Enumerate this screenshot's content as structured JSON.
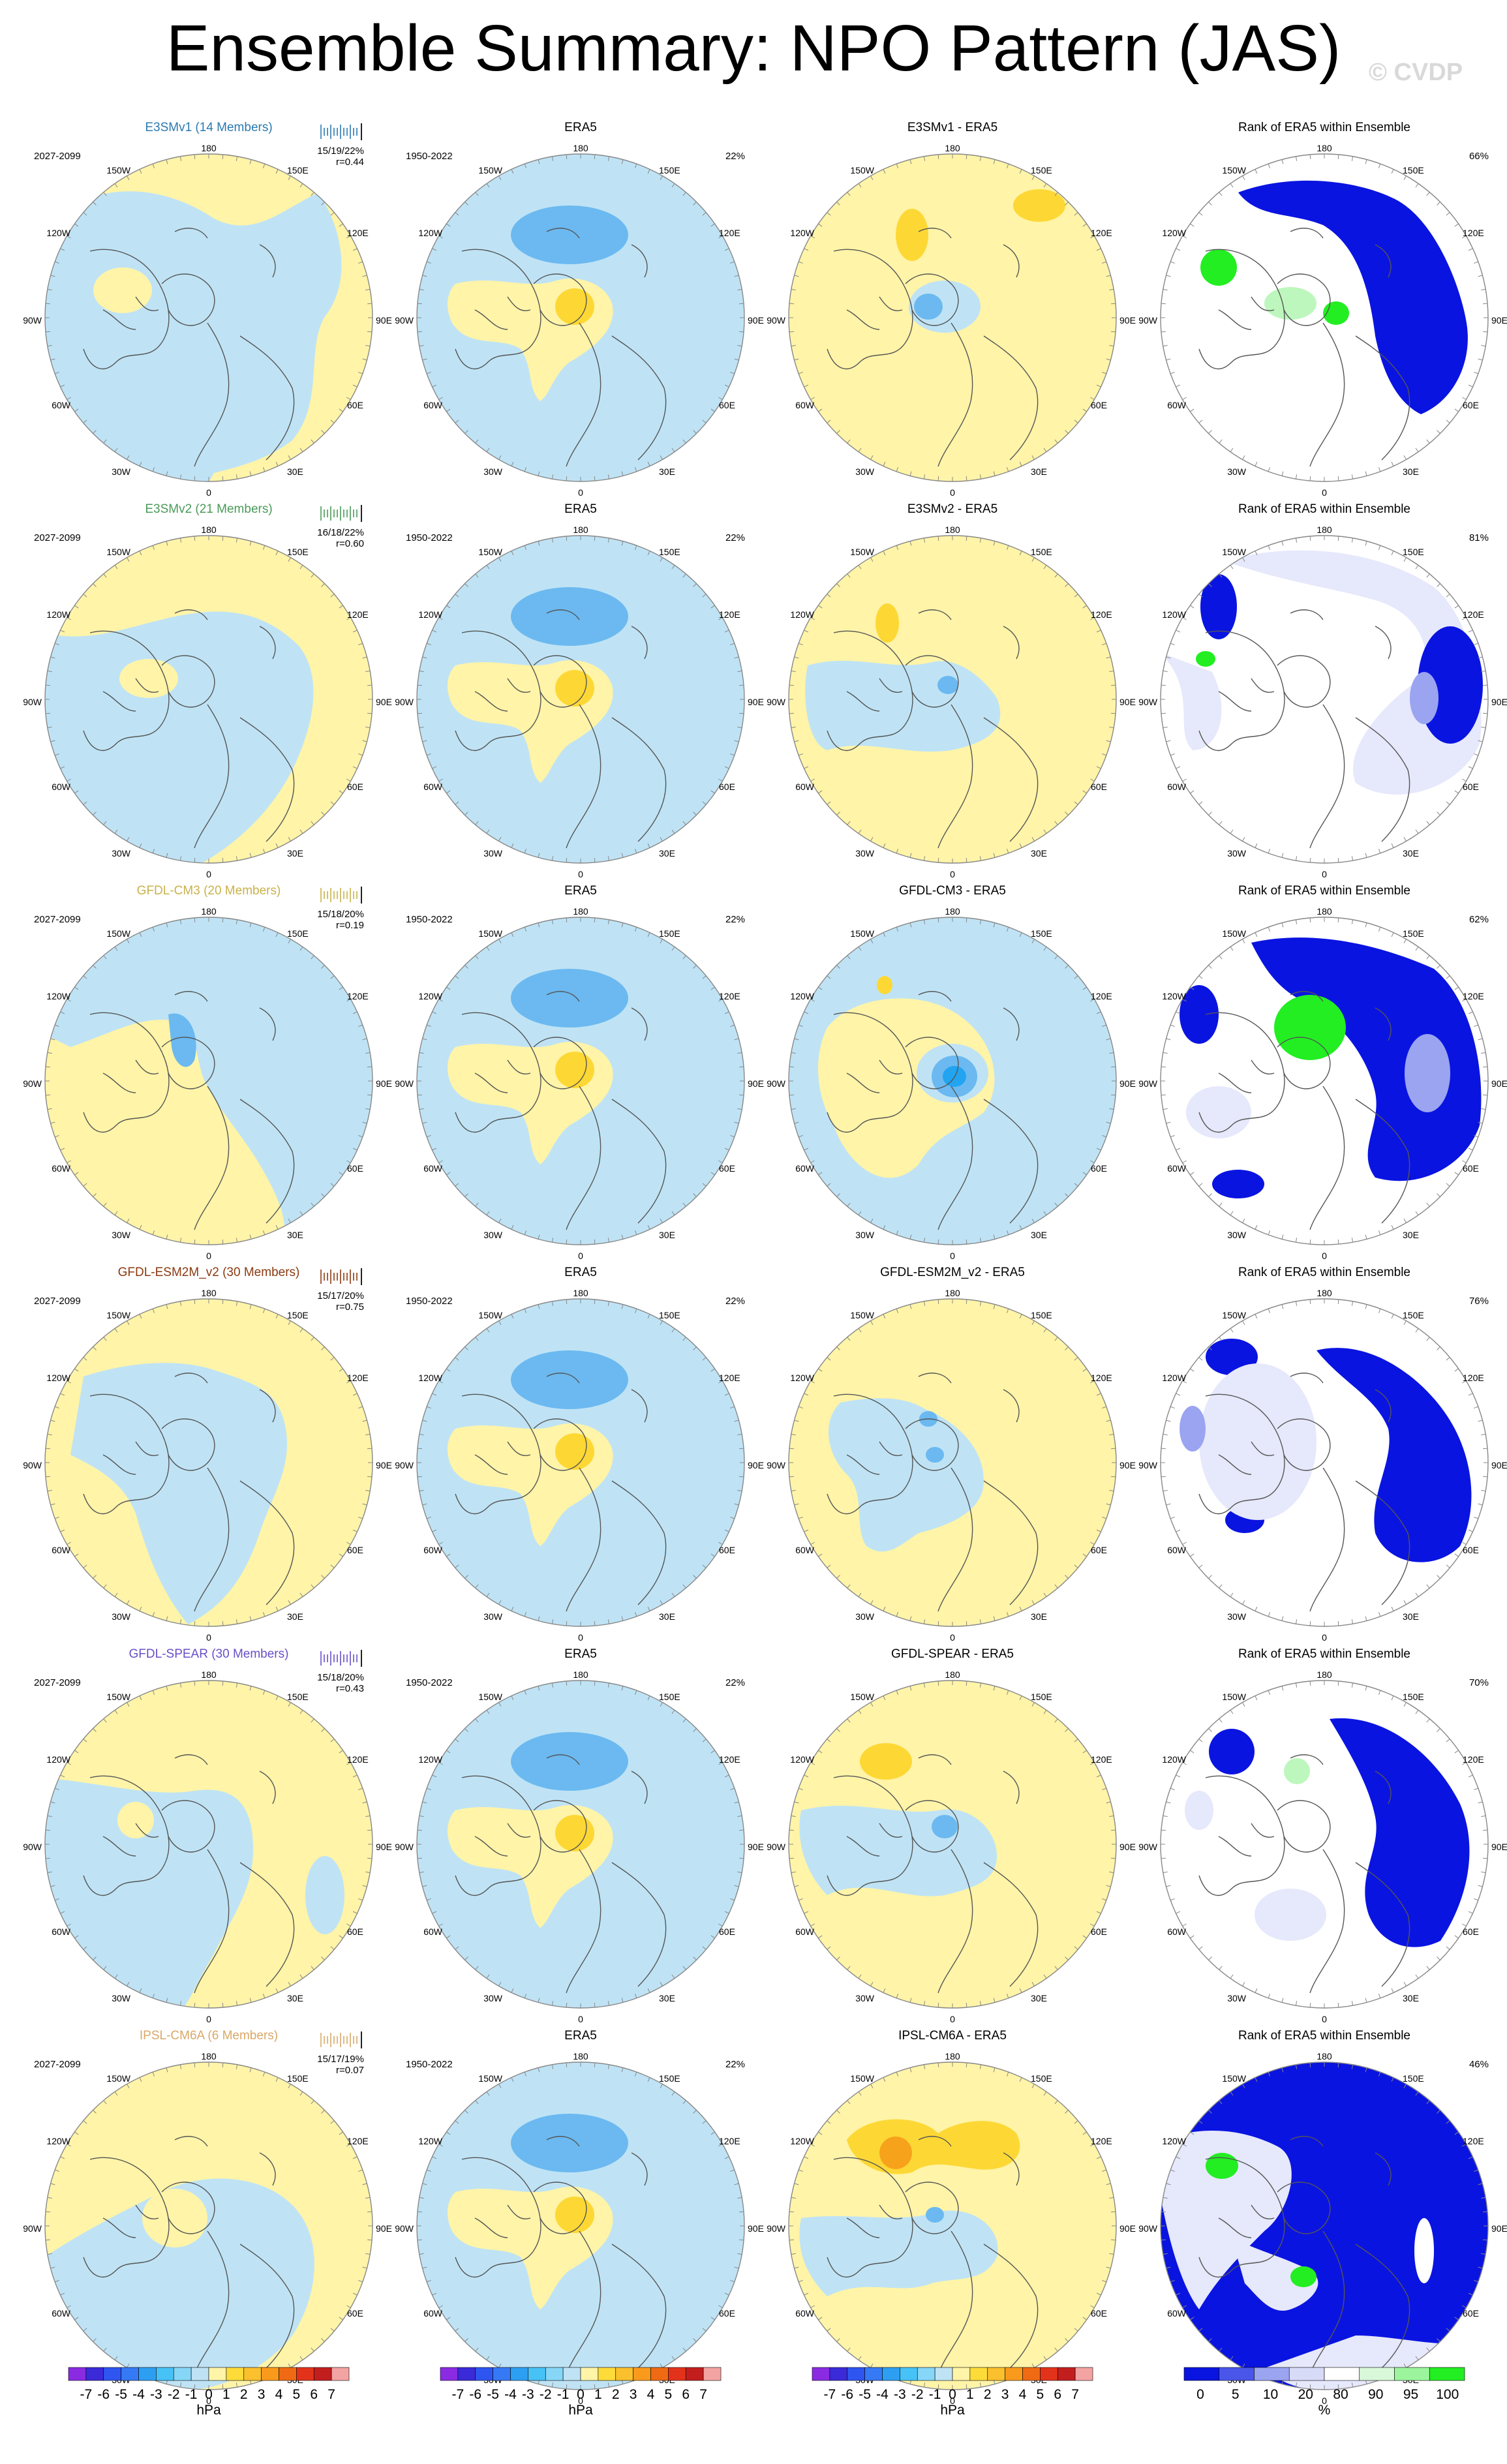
{
  "title": "Ensemble Summary: NPO Pattern (JAS)",
  "watermark": "© CVDP",
  "colors": {
    "positive": "#fff4a8",
    "negative": "#bfe3f5",
    "pos_mid": "#fdd835",
    "pos_strong": "#f7a21b",
    "neg_mid": "#6bb9f0",
    "neg_strong": "#22a4f0",
    "rank_high": "#0a14e0",
    "rank_mid": "#9aa4f0",
    "rank_low": "#e6e8fb",
    "rank_green": "#22ee22",
    "rank_green_light": "#bdf7bd"
  },
  "lon_labels": {
    "top": "180",
    "upper_left": "150W",
    "upper_right": "150E",
    "mid_left_up": "120W",
    "mid_right_up": "120E",
    "left": "90W",
    "right": "90E",
    "mid_left_low": "60W",
    "mid_right_low": "60E",
    "lower_left": "30W",
    "lower_right": "30E",
    "bottom": "0"
  },
  "common": {
    "era5_title": "ERA5",
    "era5_period": "1950-2022",
    "era5_pct": "22%",
    "rank_title": "Rank of ERA5 within Ensemble",
    "model_period": "2027-2099"
  },
  "rows": [
    {
      "model_title": "E3SMv1 (14 Members)",
      "model_color": "#2b7ab0",
      "stats1": "15/19/22%",
      "stats2": "r=0.44",
      "diff_title": "E3SMv1 - ERA5",
      "rank_pct": "66%"
    },
    {
      "model_title": "E3SMv2 (21 Members)",
      "model_color": "#4a9a58",
      "stats1": "16/18/22%",
      "stats2": "r=0.60",
      "diff_title": "E3SMv2 - ERA5",
      "rank_pct": "81%"
    },
    {
      "model_title": "GFDL-CM3 (20 Members)",
      "model_color": "#c9b24a",
      "stats1": "15/18/20%",
      "stats2": "r=0.19",
      "diff_title": "GFDL-CM3 - ERA5",
      "rank_pct": "62%"
    },
    {
      "model_title": "GFDL-ESM2M_v2 (30 Members)",
      "model_color": "#8a3a10",
      "stats1": "15/17/20%",
      "stats2": "r=0.75",
      "diff_title": "GFDL-ESM2M_v2 - ERA5",
      "rank_pct": "76%"
    },
    {
      "model_title": "GFDL-SPEAR (30 Members)",
      "model_color": "#6a4fc8",
      "stats1": "15/18/20%",
      "stats2": "r=0.43",
      "diff_title": "GFDL-SPEAR - ERA5",
      "rank_pct": "70%"
    },
    {
      "model_title": "IPSL-CM6A (6 Members)",
      "model_color": "#d9a868",
      "stats1": "15/17/19%",
      "stats2": "r=0.07",
      "diff_title": "IPSL-CM6A - ERA5",
      "rank_pct": "46%"
    }
  ],
  "colorbar_hpa": {
    "ticks": [
      "-7",
      "-6",
      "-5",
      "-4",
      "-3",
      "-2",
      "-1",
      "0",
      "1",
      "2",
      "3",
      "4",
      "5",
      "6",
      "7"
    ],
    "unit": "hPa",
    "colors": [
      "#8a2be2",
      "#3b2ad8",
      "#2f55f0",
      "#3579f5",
      "#2d9ff2",
      "#47c2f7",
      "#86d6f7",
      "#bfe3f5",
      "#fff4a8",
      "#fddc3a",
      "#fbc02d",
      "#f99a1c",
      "#f06a14",
      "#e2331a",
      "#c31e1e",
      "#f4a3a3"
    ]
  },
  "colorbar_rank": {
    "ticks": [
      "0",
      "5",
      "10",
      "20",
      "80",
      "90",
      "95",
      "100"
    ],
    "unit": "%",
    "colors": [
      "#0a14e0",
      "#4a55ea",
      "#9aa4f0",
      "#d8dbf8",
      "#ffffff",
      "#d9f7d9",
      "#9cf59c",
      "#22ee22"
    ]
  }
}
